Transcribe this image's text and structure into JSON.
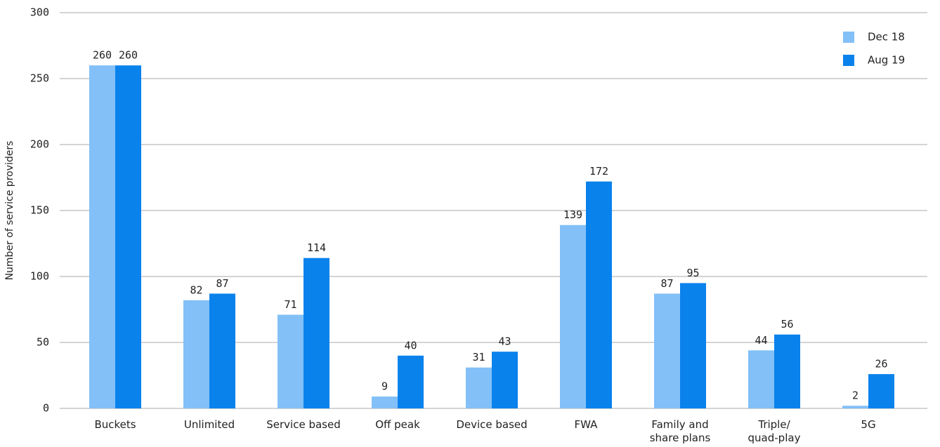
{
  "chart_data": {
    "type": "bar",
    "y_label": "Number of service providers",
    "categories": [
      "Buckets",
      "Unlimited",
      "Service based",
      "Off peak",
      "Device based",
      "FWA",
      "Family and\nshare plans",
      "Triple/\nquad-play",
      "5G"
    ],
    "series": [
      {
        "name": "Dec 18",
        "color": "#82c0f7",
        "values": [
          260,
          82,
          71,
          9,
          31,
          139,
          87,
          44,
          2
        ]
      },
      {
        "name": "Aug 19",
        "color": "#0a82ec",
        "values": [
          260,
          87,
          114,
          40,
          43,
          172,
          95,
          56,
          26
        ]
      }
    ],
    "ylim": [
      0,
      300
    ],
    "yticks": [
      0,
      50,
      100,
      150,
      200,
      250,
      300
    ],
    "grid": true,
    "legend": "top-right"
  }
}
